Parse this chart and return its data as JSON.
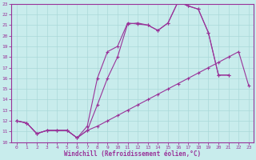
{
  "xlabel": "Windchill (Refroidissement éolien,°C)",
  "xlim": [
    -0.5,
    23.5
  ],
  "ylim": [
    10,
    23
  ],
  "xticks": [
    0,
    1,
    2,
    3,
    4,
    5,
    6,
    7,
    8,
    9,
    10,
    11,
    12,
    13,
    14,
    15,
    16,
    17,
    18,
    19,
    20,
    21,
    22,
    23
  ],
  "yticks": [
    10,
    11,
    12,
    13,
    14,
    15,
    16,
    17,
    18,
    19,
    20,
    21,
    22,
    23
  ],
  "bg_color": "#c8ecec",
  "line_color": "#993399",
  "grid_color": "#aad8d8",
  "lines": [
    {
      "x": [
        0,
        1,
        2,
        3,
        4,
        5,
        6,
        7,
        8,
        9,
        10,
        11,
        12,
        13,
        14,
        15,
        16,
        17,
        18,
        19,
        20,
        21,
        22,
        23
      ],
      "y": [
        12,
        11.8,
        10.8,
        11.1,
        11.1,
        11.1,
        10.4,
        11.1,
        11.5,
        12.0,
        12.5,
        13.0,
        13.5,
        14.0,
        14.5,
        15.0,
        15.5,
        16.0,
        16.5,
        17.0,
        17.5,
        18.0,
        18.5,
        15.3
      ]
    },
    {
      "x": [
        0,
        1,
        2,
        3,
        4,
        5,
        6,
        7,
        8,
        9,
        10,
        11,
        12,
        13,
        14,
        15,
        16,
        17,
        18,
        19,
        20,
        21
      ],
      "y": [
        12,
        11.8,
        10.8,
        11.1,
        11.1,
        11.1,
        10.4,
        11.1,
        13.5,
        16.0,
        18.0,
        21.1,
        21.2,
        21.0,
        20.5,
        21.2,
        23.2,
        22.8,
        22.5,
        20.3,
        16.3,
        16.3
      ]
    },
    {
      "x": [
        0,
        1,
        2,
        3,
        4,
        5,
        6,
        7,
        8,
        9,
        10,
        11,
        12,
        13,
        14,
        15,
        16,
        17,
        18,
        19,
        20,
        21
      ],
      "y": [
        12,
        11.8,
        10.8,
        11.1,
        11.1,
        11.1,
        10.4,
        11.5,
        16.0,
        18.5,
        19.0,
        21.2,
        21.1,
        21.0,
        20.5,
        21.2,
        23.2,
        22.8,
        22.5,
        20.3,
        16.3,
        16.3
      ]
    }
  ]
}
